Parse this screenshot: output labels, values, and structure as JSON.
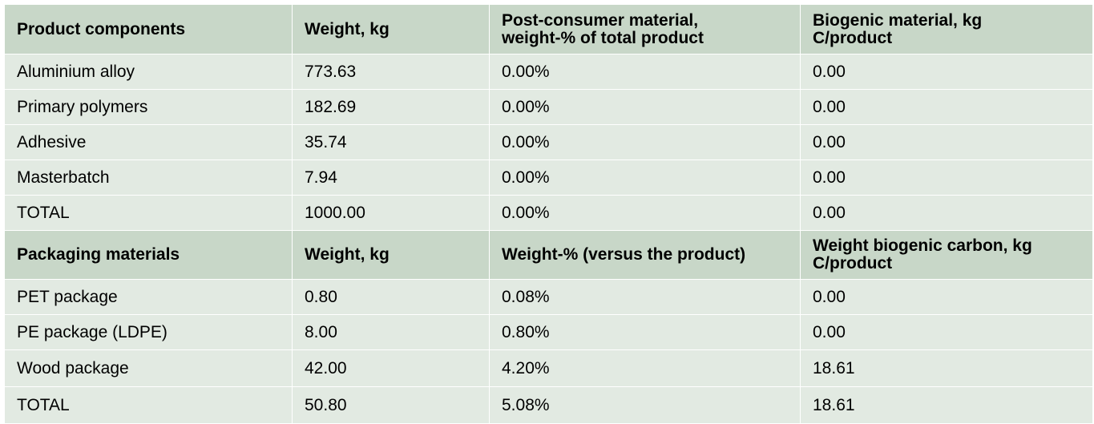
{
  "components": {
    "headers": [
      "Product components",
      "Weight, kg",
      "Post-consumer material,\nweight-% of total product",
      "Biogenic material, kg\nC/product"
    ],
    "header_lines": [
      [
        "Product components"
      ],
      [
        "Weight, kg"
      ],
      [
        "Post-consumer material,",
        "weight-% of total product"
      ],
      [
        "Biogenic material, kg",
        "C/product"
      ]
    ],
    "rows": [
      [
        "Aluminium alloy",
        "773.63",
        "0.00%",
        "0.00"
      ],
      [
        "Primary polymers",
        "182.69",
        "0.00%",
        "0.00"
      ],
      [
        "Adhesive",
        "35.74",
        "0.00%",
        "0.00"
      ],
      [
        "Masterbatch",
        "7.94",
        "0.00%",
        "0.00"
      ],
      [
        "TOTAL",
        "1000.00",
        "0.00%",
        "0.00"
      ]
    ]
  },
  "packaging": {
    "header_lines": [
      [
        "Packaging materials"
      ],
      [
        "Weight, kg"
      ],
      [
        "Weight-% (versus the product)"
      ],
      [
        "Weight biogenic carbon, kg",
        "C/product"
      ]
    ],
    "rows": [
      [
        "PET package",
        "0.80",
        "0.08%",
        "0.00"
      ],
      [
        "PE package (LDPE)",
        "8.00",
        "0.80%",
        "0.00"
      ],
      [
        "Wood package",
        "42.00",
        "4.20%",
        "18.61"
      ],
      [
        "TOTAL",
        "50.80",
        "5.08%",
        "18.61"
      ]
    ]
  },
  "colors": {
    "header_bg": "#c8d7c8",
    "row_bg": "#e2eae2",
    "grid_line": "#ffffff"
  }
}
